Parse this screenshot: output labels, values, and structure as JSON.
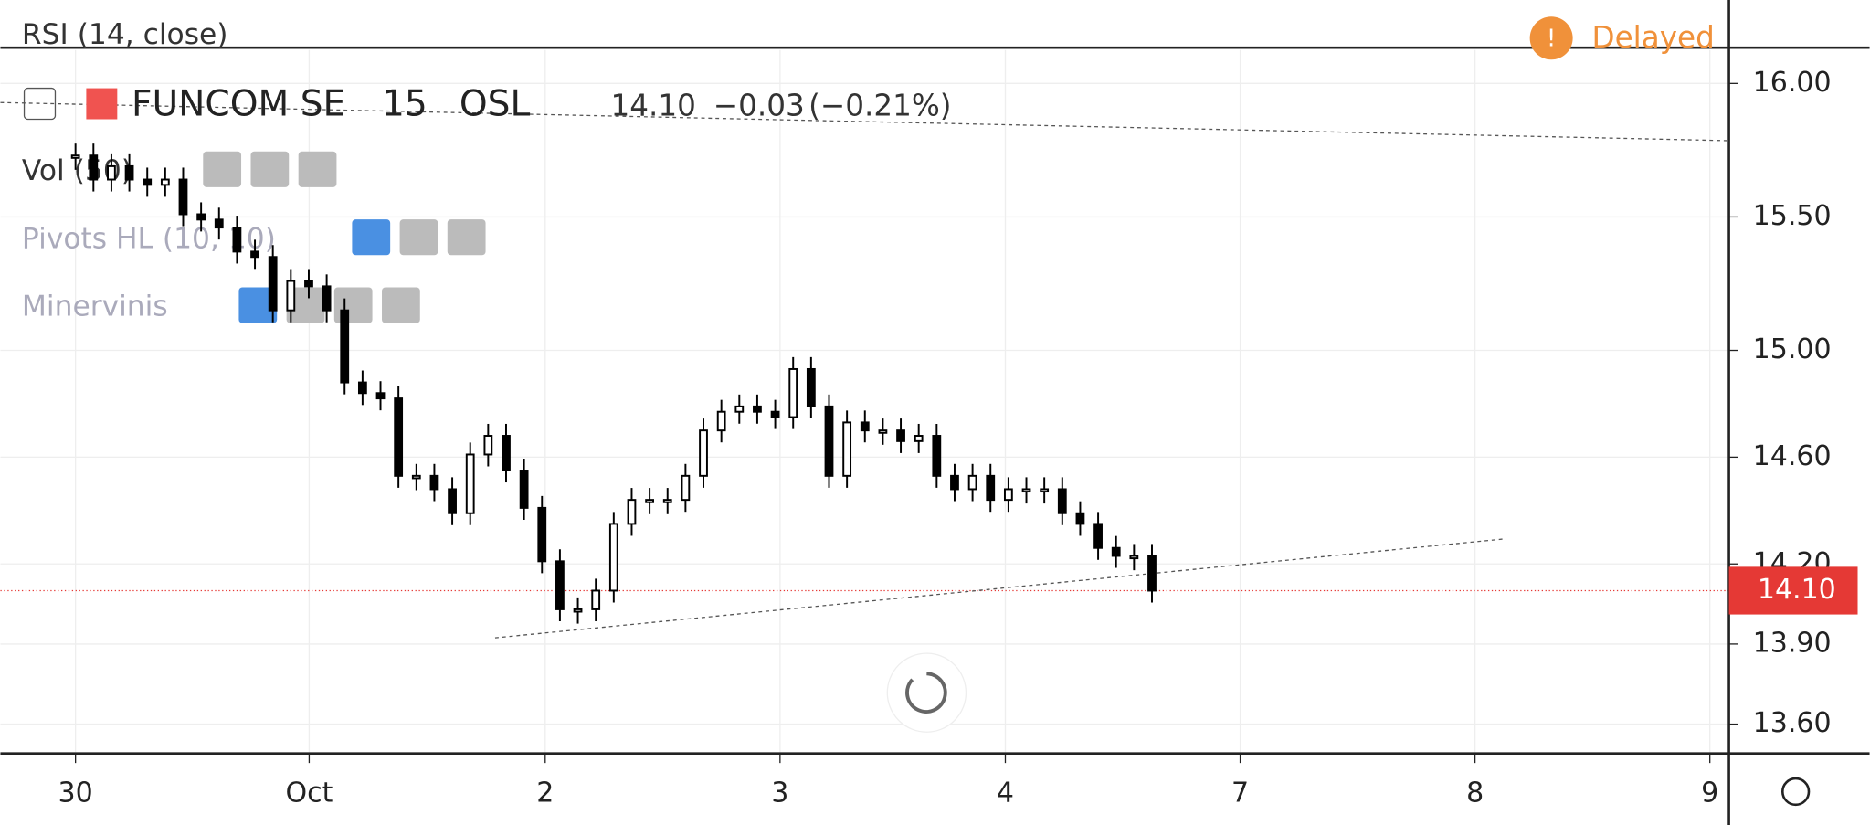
{
  "header": {
    "rsi": "RSI (14, close)",
    "symbol": "FUNCOM SE",
    "interval": "15",
    "exchange": "OSL",
    "last": "14.10",
    "change": "−0.03",
    "change_pct": "(−0.21%)",
    "delayed": "Delayed"
  },
  "indicators": [
    "Vol (50)",
    "Pivots HL (10, 10)",
    "Minervinis"
  ],
  "chart_data": {
    "type": "candlestick",
    "x_labels": [
      "30",
      "Oct",
      "2",
      "3",
      "4",
      "7",
      "8",
      "9"
    ],
    "closes": [
      15.73,
      15.64,
      15.69,
      15.64,
      15.62,
      15.64,
      15.51,
      15.49,
      15.46,
      15.37,
      15.35,
      15.15,
      15.26,
      15.24,
      15.15,
      14.88,
      14.84,
      14.82,
      14.53,
      14.53,
      14.48,
      14.39,
      14.61,
      14.68,
      14.55,
      14.41,
      14.21,
      14.03,
      14.03,
      14.1,
      14.35,
      14.44,
      14.44,
      14.44,
      14.53,
      14.7,
      14.77,
      14.79,
      14.77,
      14.75,
      14.93,
      14.79,
      14.53,
      14.73,
      14.7,
      14.7,
      14.66,
      14.68,
      14.53,
      14.48,
      14.53,
      14.44,
      14.48,
      14.48,
      14.48,
      14.39,
      14.35,
      14.26,
      14.23,
      14.23,
      14.1
    ],
    "last_price": 14.1,
    "ylim": [
      13.49,
      16.125
    ],
    "yticks": [
      {
        "value": 16.0,
        "label": "16.00"
      },
      {
        "value": 15.5,
        "label": "15.50"
      },
      {
        "value": 15.0,
        "label": "15.00"
      },
      {
        "value": 14.6,
        "label": "14.60"
      },
      {
        "value": 14.2,
        "label": "14.20"
      },
      {
        "value": 13.9,
        "label": "13.90"
      },
      {
        "value": 13.6,
        "label": "13.60"
      }
    ],
    "grid": true,
    "up_color": "#ffffff",
    "down_color": "#000000",
    "last_color": "#e53935"
  }
}
